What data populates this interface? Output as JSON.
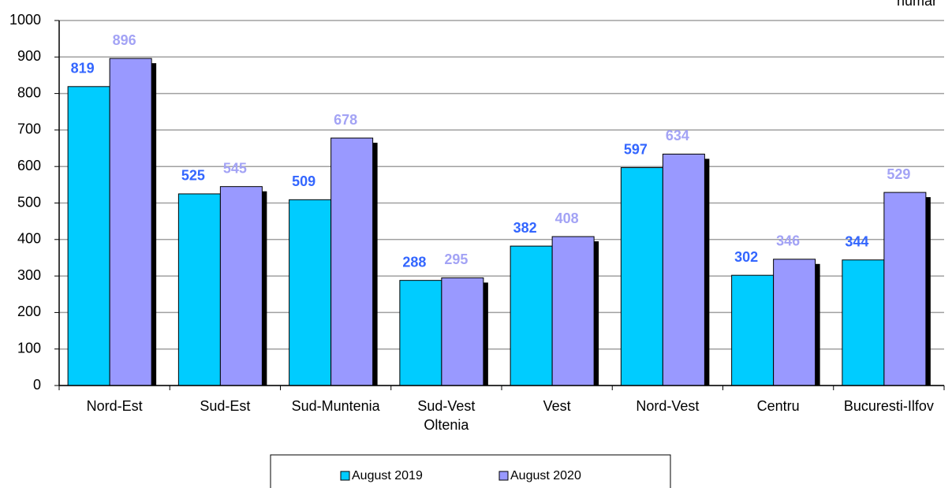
{
  "chart_data": {
    "type": "bar",
    "unit_label": "numar",
    "categories": [
      "Nord-Est",
      "Sud-Est",
      "Sud-Muntenia",
      "Sud-Vest Oltenia",
      "Vest",
      "Nord-Vest",
      "Centru",
      "Bucuresti-Ilfov"
    ],
    "series": [
      {
        "name": "August 2019",
        "color": "#00ccff",
        "label_color": "#3366ff",
        "values": [
          819,
          525,
          509,
          288,
          382,
          597,
          302,
          344
        ]
      },
      {
        "name": "August 2020",
        "color": "#9999ff",
        "label_color": "#a3a3f5",
        "values": [
          896,
          545,
          678,
          295,
          408,
          634,
          346,
          529
        ]
      }
    ],
    "ylim": [
      0,
      1000
    ],
    "yticks": [
      0,
      100,
      200,
      300,
      400,
      500,
      600,
      700,
      800,
      900,
      1000
    ],
    "grid": true,
    "legend": "bottom"
  }
}
